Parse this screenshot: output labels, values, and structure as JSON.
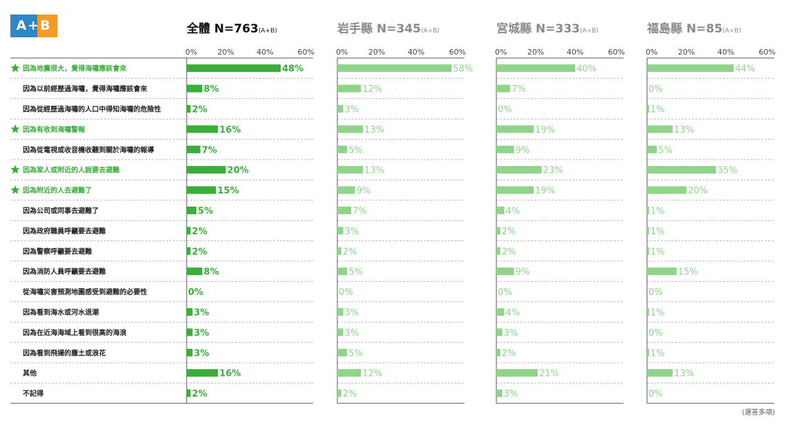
{
  "logo": {
    "text": "A+B"
  },
  "footnote": "(選答多項)",
  "chart_data": {
    "type": "bar",
    "orientation": "horizontal",
    "xlim": [
      0,
      60
    ],
    "ticks": [
      "0%",
      "20%",
      "40%",
      "60%"
    ],
    "tick_values": [
      0,
      20,
      40,
      60
    ],
    "categories": [
      "因為地震很大，覺得海嘯應該會來",
      "因為以前經歷過海嘯，覺得海嘯應該會來",
      "因為從經歷過海嘯的人口中得知海嘯的危險性",
      "因為有收到海嘯警報",
      "因為從電視或收音機收聽到關於海嘯的報導",
      "因為家人或附近的人說要去避難",
      "因為附近的人去避難了",
      "因為公司或同事去避難了",
      "因為政府職員呼籲要去避難",
      "因為警察呼籲要去避難",
      "因為消防人員呼籲要去避難",
      "從海嘯災害預測地圖感受到避難的必要性",
      "因為看到海水或河水退潮",
      "因為在近海海域上看到很高的海浪",
      "因為看到飛揚的塵土或浪花",
      "其他",
      "不記得"
    ],
    "starred": [
      true,
      false,
      false,
      true,
      false,
      true,
      true,
      false,
      false,
      false,
      false,
      false,
      false,
      false,
      false,
      false,
      false
    ],
    "series": [
      {
        "name": "全體",
        "n_label": "N=763",
        "suffix": "(A+B)",
        "color": "#3aad3a",
        "primary": true,
        "values": [
          48,
          8,
          2,
          16,
          7,
          20,
          15,
          5,
          2,
          2,
          8,
          0,
          3,
          3,
          3,
          16,
          2
        ]
      },
      {
        "name": "岩手縣",
        "n_label": "N=345",
        "suffix": "(A+B)",
        "color": "#8fd48a",
        "primary": false,
        "values": [
          58,
          12,
          3,
          13,
          5,
          13,
          9,
          7,
          3,
          2,
          5,
          0,
          3,
          3,
          5,
          12,
          2
        ]
      },
      {
        "name": "宮城縣",
        "n_label": "N=333",
        "suffix": "(A+B)",
        "color": "#8fd48a",
        "primary": false,
        "values": [
          40,
          7,
          0,
          19,
          9,
          23,
          19,
          4,
          2,
          2,
          9,
          0,
          4,
          3,
          2,
          21,
          3
        ]
      },
      {
        "name": "福島縣",
        "n_label": "N=85",
        "suffix": "(A+B)",
        "color": "#8fd48a",
        "primary": false,
        "values": [
          44,
          0,
          1,
          13,
          5,
          35,
          20,
          1,
          1,
          1,
          15,
          0,
          1,
          0,
          1,
          13,
          0
        ]
      }
    ],
    "colors": {
      "star": "#3aad3a",
      "highlight_text": "#3aad3a",
      "primary_title": "#111111",
      "secondary_title": "#8a8a8a"
    }
  }
}
